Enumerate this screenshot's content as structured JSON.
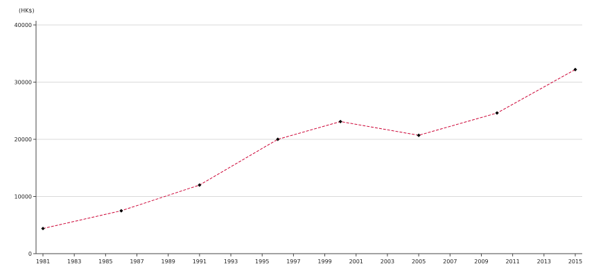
{
  "chart_data": {
    "type": "line",
    "title": "",
    "xlabel": "",
    "ylabel": "",
    "y_unit_label": "(HK$)",
    "xlim": [
      1981,
      2015
    ],
    "ylim": [
      0,
      40000
    ],
    "x_ticks": [
      1981,
      1983,
      1985,
      1987,
      1989,
      1991,
      1993,
      1995,
      1997,
      1999,
      2001,
      2003,
      2005,
      2007,
      2009,
      2011,
      2013,
      2015
    ],
    "y_ticks": [
      0,
      10000,
      20000,
      30000,
      40000
    ],
    "grid": "horizontal",
    "line_color": "#cc0033",
    "marker_color": "#000000",
    "line_style": "dashed",
    "series": [
      {
        "x": [
          1981,
          1986,
          1991,
          1996,
          2000,
          2005,
          2010,
          2015
        ],
        "values": [
          4400,
          7500,
          12000,
          20000,
          23100,
          20700,
          24600,
          32200
        ]
      }
    ]
  }
}
